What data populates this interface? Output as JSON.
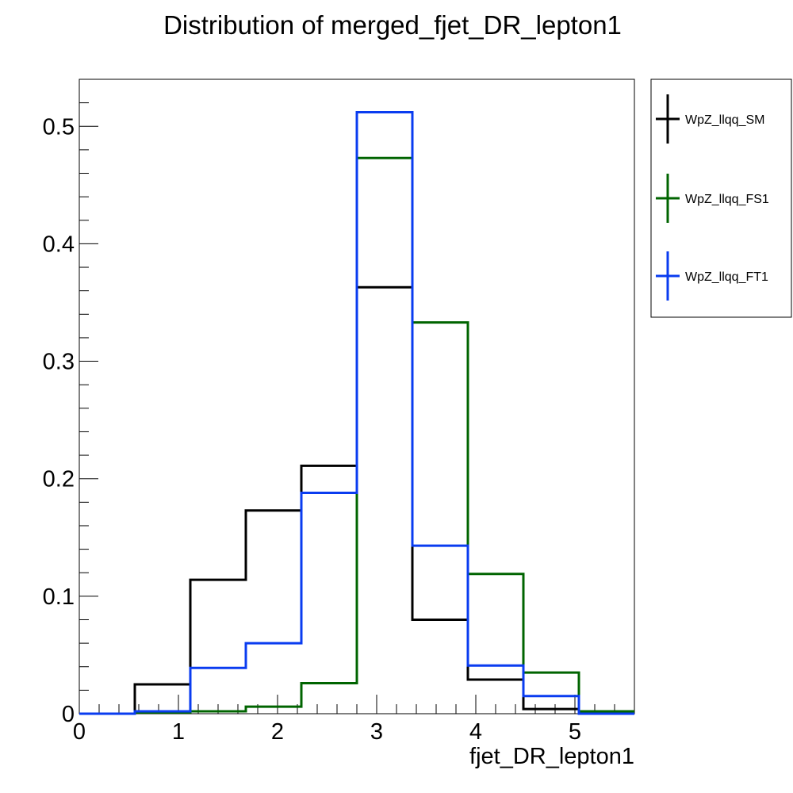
{
  "chart_data": {
    "type": "histogram",
    "title": "Distribution of merged_fjet_DR_lepton1",
    "xlabel": "fjet_DR_lepton1",
    "ylabel": "",
    "xlim": [
      0,
      5.6
    ],
    "ylim": [
      0,
      0.54
    ],
    "bin_edges": [
      0,
      0.56,
      1.12,
      1.68,
      2.24,
      2.8,
      3.36,
      3.92,
      4.48,
      5.04,
      5.6
    ],
    "x_ticks": [
      0,
      1,
      2,
      3,
      4,
      5
    ],
    "x_tick_labels": [
      "0",
      "1",
      "2",
      "3",
      "4",
      "5"
    ],
    "y_ticks": [
      0,
      0.1,
      0.2,
      0.3,
      0.4,
      0.5
    ],
    "y_tick_labels": [
      "0",
      "0.1",
      "0.2",
      "0.3",
      "0.4",
      "0.5"
    ],
    "grid": false,
    "legend_position": "right, outside plot area",
    "series": [
      {
        "name": "WpZ_llqq_SM",
        "color": "#000000",
        "values": [
          0.0,
          0.025,
          0.114,
          0.173,
          0.211,
          0.363,
          0.08,
          0.029,
          0.004,
          0.0
        ]
      },
      {
        "name": "WpZ_llqq_FS1",
        "color": "#006400",
        "values": [
          0.0,
          0.001,
          0.002,
          0.006,
          0.026,
          0.473,
          0.333,
          0.119,
          0.035,
          0.002
        ]
      },
      {
        "name": "WpZ_llqq_FT1",
        "color": "#0a3cf0",
        "values": [
          0.0,
          0.002,
          0.039,
          0.06,
          0.188,
          0.512,
          0.143,
          0.041,
          0.015,
          0.0
        ]
      }
    ]
  }
}
